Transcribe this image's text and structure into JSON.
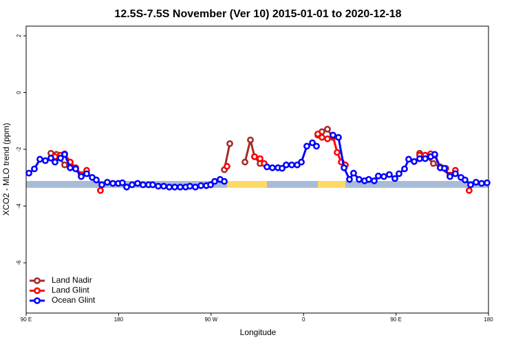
{
  "chart_data": {
    "type": "line",
    "title": "12.5S-7.5S November (Ver 10)   2015-01-01 to 2020-12-18",
    "x_label": "Longitude",
    "y_label": "XCO2 - MLO trend (ppm)",
    "xlim": [
      90,
      540
    ],
    "xticks": [
      {
        "value": 90,
        "label": "90 E"
      },
      {
        "value": 180,
        "label": "180"
      },
      {
        "value": 270,
        "label": "90 W"
      },
      {
        "value": 360,
        "label": "0"
      },
      {
        "value": 450,
        "label": "90 E"
      },
      {
        "value": 540,
        "label": "180"
      }
    ],
    "ylim": [
      -7.77,
      2.34
    ],
    "yticks": [
      2,
      0,
      -2,
      -4,
      -6
    ],
    "legend": "bottom-left",
    "series": [
      {
        "name": "Land Nadir",
        "color": "#a52a2a",
        "x": [
          114.1,
          119.5,
          127.5,
          132.9,
          282.9,
          288.2,
          303.0,
          308.3,
          312.3,
          317.7,
          373.9,
          377.9,
          383.3,
          388.6,
          473.0,
          478.4,
          486.4,
          493.1,
          498.5
        ],
        "values": [
          -2.14,
          -2.18,
          -2.55,
          -2.65,
          -2.72,
          -1.8,
          -2.45,
          -1.67,
          -2.26,
          -2.5,
          -1.5,
          -1.38,
          -1.29,
          -1.58,
          -2.14,
          -2.21,
          -2.5,
          -2.62,
          -2.67
        ]
      },
      {
        "name": "Land Glint",
        "color": "#ff0000",
        "x": [
          118.1,
          123.5,
          127.5,
          132.9,
          138.2,
          143.6,
          148.9,
          162.3,
          285.5,
          312.3,
          317.7,
          321.7,
          373.9,
          377.9,
          383.3,
          388.6,
          392.7,
          396.7,
          400.7,
          473.0,
          478.4,
          483.7,
          487.7,
          493.1,
          502.5,
          507.8,
          521.2
        ],
        "values": [
          -2.26,
          -2.21,
          -2.16,
          -2.45,
          -2.65,
          -2.89,
          -2.74,
          -3.45,
          -2.6,
          -2.26,
          -2.33,
          -2.5,
          -1.46,
          -1.58,
          -1.63,
          -1.53,
          -2.11,
          -2.45,
          -2.55,
          -2.21,
          -2.21,
          -2.16,
          -2.21,
          -2.65,
          -2.91,
          -2.74,
          -3.45
        ]
      },
      {
        "name": "Ocean Glint",
        "color": "#0000ff",
        "x": [
          92.7,
          98.0,
          103.4,
          108.7,
          114.1,
          118.1,
          123.5,
          127.5,
          132.9,
          138.2,
          143.6,
          148.9,
          154.3,
          158.3,
          163.7,
          169.0,
          174.4,
          179.7,
          183.7,
          187.8,
          193.1,
          198.5,
          203.8,
          209.2,
          213.2,
          218.6,
          223.9,
          229.3,
          234.6,
          240.0,
          245.3,
          249.4,
          254.7,
          260.1,
          265.4,
          269.5,
          273.5,
          278.8,
          282.9,
          324.4,
          329.7,
          335.1,
          339.1,
          343.1,
          348.5,
          353.8,
          357.9,
          363.2,
          368.6,
          372.6,
          388.6,
          394.0,
          399.4,
          404.7,
          408.7,
          414.1,
          419.4,
          423.5,
          428.8,
          432.8,
          438.2,
          443.5,
          448.9,
          452.9,
          458.3,
          462.3,
          467.7,
          473.0,
          478.4,
          483.7,
          487.7,
          493.1,
          497.1,
          502.5,
          507.8,
          513.2,
          517.2,
          522.6,
          527.9,
          533.3,
          538.6
        ],
        "values": [
          -2.84,
          -2.69,
          -2.35,
          -2.4,
          -2.31,
          -2.45,
          -2.31,
          -2.18,
          -2.65,
          -2.69,
          -2.96,
          -2.86,
          -2.99,
          -3.08,
          -3.25,
          -3.16,
          -3.2,
          -3.2,
          -3.18,
          -3.33,
          -3.25,
          -3.2,
          -3.25,
          -3.25,
          -3.25,
          -3.3,
          -3.3,
          -3.33,
          -3.33,
          -3.33,
          -3.33,
          -3.3,
          -3.33,
          -3.28,
          -3.28,
          -3.25,
          -3.13,
          -3.06,
          -3.13,
          -2.62,
          -2.65,
          -2.65,
          -2.67,
          -2.55,
          -2.55,
          -2.55,
          -2.45,
          -1.89,
          -1.77,
          -1.89,
          -1.5,
          -1.58,
          -2.65,
          -3.06,
          -2.84,
          -3.06,
          -3.11,
          -3.06,
          -3.11,
          -2.94,
          -2.96,
          -2.89,
          -3.03,
          -2.86,
          -2.69,
          -2.35,
          -2.43,
          -2.33,
          -2.33,
          -2.26,
          -2.18,
          -2.65,
          -2.67,
          -2.96,
          -2.86,
          -2.99,
          -3.08,
          -3.25,
          -3.16,
          -3.2,
          -3.18
        ]
      }
    ]
  }
}
